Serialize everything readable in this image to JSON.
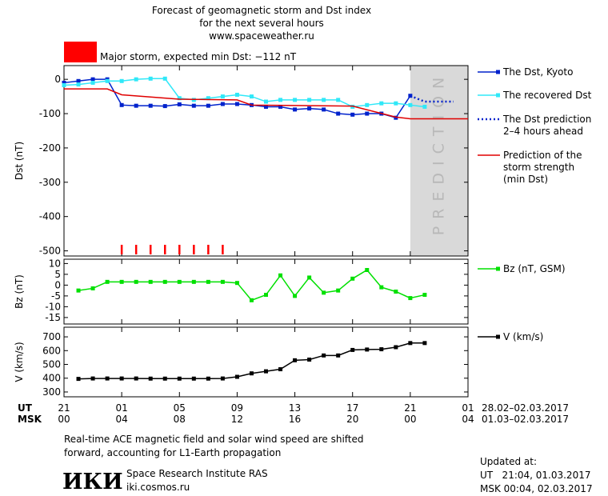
{
  "title_lines": [
    "Forecast of geomagnetic storm and Dst index",
    "for the next several hours",
    "www.spaceweather.ru"
  ],
  "alert": {
    "text": "Major storm, expected min Dst: −112 nT",
    "color": "#ff0000"
  },
  "chart_data": [
    {
      "type": "line",
      "y_label": "Dst (nT)",
      "ylim": [
        -515,
        40
      ],
      "yticks": [
        0,
        -100,
        -200,
        -300,
        -400,
        -500
      ],
      "prediction_zone": {
        "xlim": [
          24,
          28
        ],
        "label": "PREDICTION"
      },
      "storm_markers": [
        4,
        5,
        6,
        7,
        8,
        9,
        10,
        11
      ],
      "storm_marker_color": "#ff0000",
      "series": [
        {
          "name": [
            "The Dst, Kyoto"
          ],
          "color": "#0022cc",
          "marker": "square",
          "style": "solid",
          "x": [
            0,
            1,
            2,
            3,
            4,
            5,
            6,
            7,
            8,
            9,
            10,
            11,
            12,
            13,
            14,
            15,
            16,
            17,
            18,
            19,
            20,
            21,
            22,
            23,
            24
          ],
          "values": [
            -10,
            -5,
            0,
            0,
            -75,
            -77,
            -77,
            -78,
            -73,
            -77,
            -77,
            -72,
            -72,
            -75,
            -80,
            -80,
            -88,
            -85,
            -88,
            -100,
            -103,
            -100,
            -100,
            -112,
            -48
          ]
        },
        {
          "name": [
            "The recovered Dst"
          ],
          "color": "#30e8f8",
          "marker": "square",
          "style": "solid",
          "x": [
            0,
            1,
            2,
            3,
            4,
            5,
            6,
            7,
            8,
            9,
            10,
            11,
            12,
            13,
            14,
            15,
            16,
            17,
            18,
            19,
            20,
            21,
            22,
            23,
            24,
            25
          ],
          "values": [
            -17,
            -15,
            -10,
            -5,
            -5,
            0,
            2,
            2,
            -55,
            -60,
            -55,
            -50,
            -45,
            -50,
            -65,
            -60,
            -60,
            -60,
            -60,
            -60,
            -80,
            -75,
            -70,
            -70,
            -75,
            -80
          ]
        },
        {
          "name": [
            "The Dst prediction",
            "2–4 hours ahead"
          ],
          "color": "#0022cc",
          "marker": "none",
          "style": "dotted",
          "x": [
            24,
            25,
            26,
            27
          ],
          "values": [
            -48,
            -65,
            -65,
            -65
          ]
        },
        {
          "name": [
            "Prediction of the",
            "storm strength",
            "(min Dst)"
          ],
          "color": "#e00000",
          "marker": "none",
          "style": "solid",
          "x": [
            0,
            3,
            4,
            8,
            12,
            13,
            20,
            23,
            24,
            28
          ],
          "values": [
            -28,
            -28,
            -45,
            -58,
            -60,
            -75,
            -78,
            -110,
            -115,
            -115
          ]
        }
      ]
    },
    {
      "type": "line",
      "y_label": "Bz (nT)",
      "ylim": [
        -18,
        12
      ],
      "yticks": [
        10,
        5,
        0,
        -5,
        -10,
        -15
      ],
      "series": [
        {
          "name": [
            "Bz (nT, GSM)"
          ],
          "color": "#00e000",
          "marker": "square",
          "style": "solid",
          "x": [
            1,
            2,
            3,
            4,
            5,
            6,
            7,
            8,
            9,
            10,
            11,
            12,
            13,
            14,
            15,
            16,
            17,
            18,
            19,
            20,
            21,
            22,
            23,
            24,
            25
          ],
          "values": [
            -2.5,
            -1.5,
            1.5,
            1.5,
            1.5,
            1.5,
            1.5,
            1.5,
            1.5,
            1.5,
            1.5,
            1,
            -7,
            -4.5,
            4.5,
            -5,
            3.5,
            -3.5,
            -2.5,
            3,
            7,
            -1,
            -3,
            -6,
            -4.5
          ]
        }
      ]
    },
    {
      "type": "line",
      "y_label": "V (km/s)",
      "ylim": [
        265,
        770
      ],
      "yticks": [
        300,
        400,
        500,
        600,
        700
      ],
      "xlim": [
        0,
        28
      ],
      "xticks": [
        {
          "value": 0,
          "label": "21"
        },
        {
          "value": 4,
          "label": "01"
        },
        {
          "value": 8,
          "label": "05"
        },
        {
          "value": 12,
          "label": "09"
        },
        {
          "value": 16,
          "label": "13"
        },
        {
          "value": 20,
          "label": "17"
        },
        {
          "value": 24,
          "label": "21"
        },
        {
          "value": 28,
          "label": "01"
        }
      ],
      "x_row_labels": [
        "UT",
        "MSK"
      ],
      "msk_labels": [
        "00",
        "04",
        "08",
        "12",
        "16",
        "20",
        "00",
        "04"
      ],
      "date_labels": [
        "28.02–02.03.2017",
        "01.03–02.03.2017"
      ],
      "series": [
        {
          "name": [
            "V (km/s)"
          ],
          "color": "#000000",
          "marker": "square",
          "style": "solid",
          "x": [
            1,
            2,
            3,
            4,
            5,
            6,
            7,
            8,
            9,
            10,
            11,
            12,
            13,
            14,
            15,
            16,
            17,
            18,
            19,
            20,
            21,
            22,
            23,
            24,
            25
          ],
          "values": [
            395,
            398,
            398,
            398,
            398,
            397,
            397,
            397,
            397,
            397,
            398,
            410,
            435,
            450,
            465,
            530,
            535,
            565,
            565,
            605,
            608,
            610,
            625,
            655,
            655
          ]
        }
      ]
    }
  ],
  "footer": {
    "note_lines": [
      "Real-time ACE magnetic field and solar wind speed are shifted",
      "forward, accounting for L1-Earth propagation"
    ],
    "logo": "ИКИ",
    "institute": "Space Research Institute RAS",
    "site": "iki.cosmos.ru",
    "updated_lines": [
      "Updated at:",
      "UT   21:04, 01.03.2017",
      "MSK 00:04, 02.03.2017"
    ]
  }
}
